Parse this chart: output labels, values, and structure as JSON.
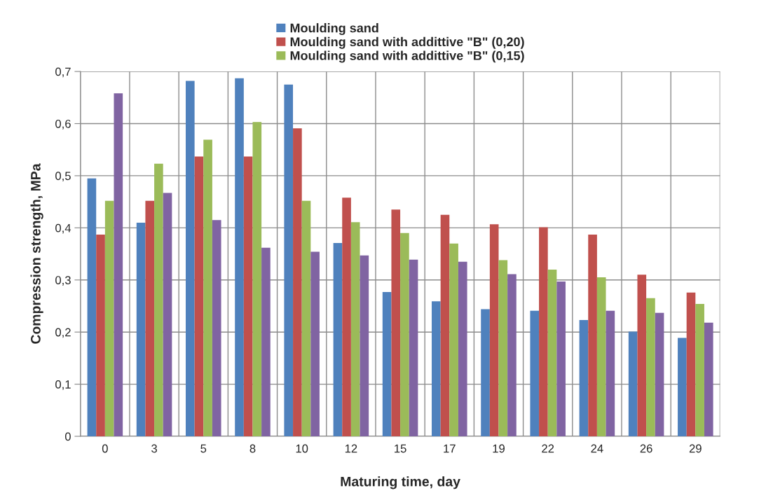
{
  "chart_data": {
    "type": "bar",
    "xlabel": "Maturing time, day",
    "ylabel": "Compression strength, MPa",
    "categories": [
      "0",
      "3",
      "5",
      "8",
      "10",
      "12",
      "15",
      "17",
      "19",
      "22",
      "24",
      "26",
      "29"
    ],
    "series": [
      {
        "name": "Moulding sand",
        "color": "#4f81bd",
        "values": [
          0.495,
          0.41,
          0.682,
          0.687,
          0.675,
          0.371,
          0.277,
          0.259,
          0.244,
          0.241,
          0.223,
          0.201,
          0.189
        ]
      },
      {
        "name": "Moulding sand with addittive \"B\" (0,20)",
        "color": "#c0504d",
        "values": [
          0.387,
          0.452,
          0.537,
          0.537,
          0.591,
          0.458,
          0.435,
          0.425,
          0.407,
          0.401,
          0.387,
          0.31,
          0.276
        ]
      },
      {
        "name": "Moulding sand with addittive \"B\" (0,15)",
        "color": "#9bbb59",
        "values": [
          0.452,
          0.523,
          0.569,
          0.603,
          0.452,
          0.411,
          0.39,
          0.37,
          0.338,
          0.32,
          0.305,
          0.265,
          0.254
        ]
      },
      {
        "color": "#8064a2",
        "values": [
          0.658,
          0.467,
          0.415,
          0.362,
          0.354,
          0.347,
          0.339,
          0.335,
          0.311,
          0.297,
          0.241,
          0.237,
          0.218
        ]
      }
    ],
    "ylim": [
      0,
      0.7
    ],
    "yticks": [
      0,
      {
        "value": 0.1,
        "label": "0,1"
      },
      {
        "value": 0.2,
        "label": "0,2"
      },
      {
        "value": 0.3,
        "label": "0,3"
      },
      {
        "value": 0.4,
        "label": "0,4"
      },
      {
        "value": 0.5,
        "label": "0,5"
      },
      {
        "value": 0.6,
        "label": "0,6"
      },
      {
        "value": 0.7,
        "label": "0,7"
      }
    ],
    "grid": true,
    "legend": "top"
  }
}
